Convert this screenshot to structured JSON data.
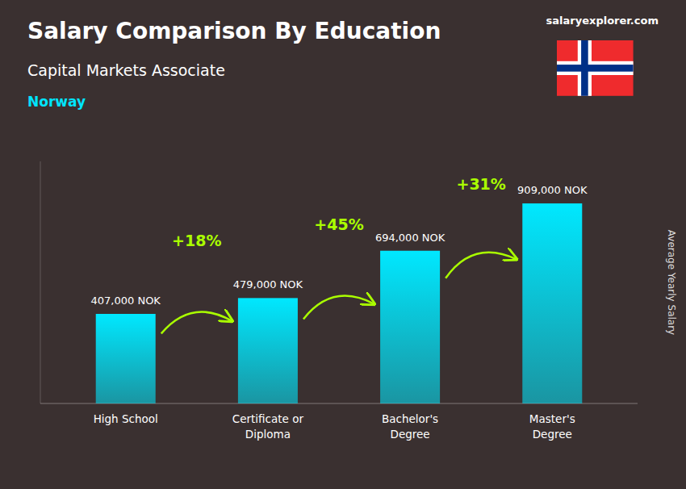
{
  "chart_data": {
    "type": "bar",
    "title": "Salary Comparison By Education",
    "subtitle": "Capital Markets Associate",
    "annotations": [
      "Norway",
      "salaryexplorer.com",
      "+18%",
      "+45%",
      "+31%"
    ],
    "ylabel": "Average Yearly Salary",
    "categories": [
      "High School",
      "Certificate or\nDiploma",
      "Bachelor's\nDegree",
      "Master's\nDegree"
    ],
    "values": [
      407000,
      479000,
      694000,
      909000
    ],
    "value_labels": [
      "407,000 NOK",
      "479,000 NOK",
      "694,000 NOK",
      "909,000 NOK"
    ],
    "data_labels": true,
    "color": "#00e8ff",
    "ylim": [
      0,
      1100000
    ],
    "tick_labels": "x",
    "grid": false
  }
}
